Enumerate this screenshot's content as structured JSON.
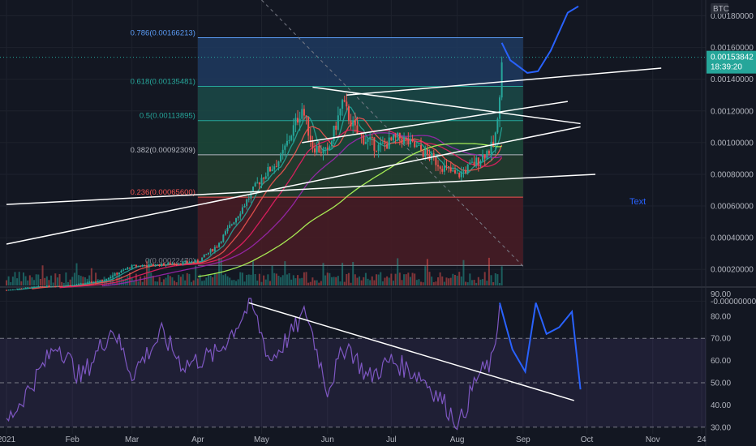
{
  "chart_data": {
    "type": "candlestick",
    "symbol_badge": "BTC",
    "last_price": "0.00153842",
    "countdown": "18:39:20",
    "annotation_text": "Text",
    "price_axis": {
      "ylim": [
        0.00015,
        0.0019
      ],
      "ticks": [
        "0.00180000",
        "0.00160000",
        "0.00140000",
        "0.00120000",
        "0.00100000",
        "0.00080000",
        "0.00060000",
        "0.00040000",
        "0.00020000",
        "-0.00000000"
      ],
      "tick_values": [
        0.0018,
        0.0016,
        0.0014,
        0.0012,
        0.001,
        0.0008,
        0.0006,
        0.0004,
        0.0002,
        0.0
      ]
    },
    "rsi_axis": {
      "ylim": [
        27,
        92
      ],
      "ticks": [
        "90.00",
        "80.00",
        "70.00",
        "60.00",
        "50.00",
        "40.00",
        "30.00"
      ],
      "tick_values": [
        90,
        80,
        70,
        60,
        50,
        40,
        30
      ],
      "band_upper": 70,
      "band_mid": 50,
      "band_lower": 30
    },
    "time_axis": {
      "labels": [
        "2021",
        "Feb",
        "Mar",
        "Apr",
        "May",
        "Jun",
        "Jul",
        "Aug",
        "Sep",
        "Oct",
        "Nov",
        "24"
      ],
      "dates": [
        "2021-01-01",
        "2021-02-01",
        "2021-03-01",
        "2021-04-01",
        "2021-05-01",
        "2021-06-01",
        "2021-07-01",
        "2021-08-01",
        "2021-09-01",
        "2021-10-01",
        "2021-11-01",
        "2021-11-24"
      ]
    },
    "fib_levels": [
      {
        "label": "0.786(0.00166213)",
        "value": 0.00166213,
        "color": "#5b9cf6"
      },
      {
        "label": "0.618(0.00135481)",
        "value": 0.00135481,
        "color": "#26a69a"
      },
      {
        "label": "0.5(0.00113895)",
        "value": 0.00113895,
        "color": "#26a69a"
      },
      {
        "label": "0.382(0.00092309)",
        "value": 0.00092309,
        "color": "#b2b5be"
      },
      {
        "label": "0.236(0.00065600)",
        "value": 0.000656,
        "color": "#ef5350"
      },
      {
        "label": "0(0.00022470)",
        "value": 0.0002247,
        "color": "#787b86"
      }
    ],
    "fib_range_dates": [
      "2021-04-01",
      "2021-09-01"
    ],
    "price_series": [
      [
        "2021-01-01",
        7e-05
      ],
      [
        "2021-01-15",
        9e-05
      ],
      [
        "2021-02-01",
        0.0001
      ],
      [
        "2021-02-15",
        0.00013
      ],
      [
        "2021-03-01",
        0.00022
      ],
      [
        "2021-03-15",
        0.00023
      ],
      [
        "2021-04-01",
        0.00025
      ],
      [
        "2021-04-10",
        0.00035
      ],
      [
        "2021-04-20",
        0.00055
      ],
      [
        "2021-05-01",
        0.00078
      ],
      [
        "2021-05-10",
        0.0009
      ],
      [
        "2021-05-20",
        0.00122
      ],
      [
        "2021-05-25",
        0.00098
      ],
      [
        "2021-06-01",
        0.00093
      ],
      [
        "2021-06-08",
        0.00125
      ],
      [
        "2021-06-15",
        0.00105
      ],
      [
        "2021-06-25",
        0.00097
      ],
      [
        "2021-07-05",
        0.00103
      ],
      [
        "2021-07-15",
        0.00095
      ],
      [
        "2021-07-25",
        0.00085
      ],
      [
        "2021-08-01",
        0.00079
      ],
      [
        "2021-08-10",
        0.00088
      ],
      [
        "2021-08-18",
        0.00098
      ],
      [
        "2021-08-20",
        0.00112
      ],
      [
        "2021-08-22",
        0.00155
      ]
    ],
    "projection_series": [
      [
        "2021-08-22",
        0.00163
      ],
      [
        "2021-08-26",
        0.00152
      ],
      [
        "2021-09-03",
        0.00144
      ],
      [
        "2021-09-08",
        0.00145
      ],
      [
        "2021-09-14",
        0.00158
      ],
      [
        "2021-09-22",
        0.00182
      ],
      [
        "2021-09-27",
        0.00186
      ]
    ],
    "rsi_series": [
      [
        "2021-01-01",
        32
      ],
      [
        "2021-01-10",
        45
      ],
      [
        "2021-01-25",
        68
      ],
      [
        "2021-02-05",
        52
      ],
      [
        "2021-02-20",
        75
      ],
      [
        "2021-03-01",
        54
      ],
      [
        "2021-03-15",
        72
      ],
      [
        "2021-03-25",
        58
      ],
      [
        "2021-04-10",
        63
      ],
      [
        "2021-04-20",
        77
      ],
      [
        "2021-04-26",
        86
      ],
      [
        "2021-05-05",
        60
      ],
      [
        "2021-05-15",
        72
      ],
      [
        "2021-05-22",
        82
      ],
      [
        "2021-06-01",
        47
      ],
      [
        "2021-06-10",
        68
      ],
      [
        "2021-06-20",
        52
      ],
      [
        "2021-07-01",
        60
      ],
      [
        "2021-07-15",
        53
      ],
      [
        "2021-07-25",
        42
      ],
      [
        "2021-08-02",
        31
      ],
      [
        "2021-08-10",
        52
      ],
      [
        "2021-08-18",
        60
      ],
      [
        "2021-08-21",
        86
      ]
    ],
    "rsi_projection": [
      [
        "2021-08-21",
        86
      ],
      [
        "2021-08-27",
        65
      ],
      [
        "2021-09-02",
        55
      ],
      [
        "2021-09-07",
        86
      ],
      [
        "2021-09-12",
        72
      ],
      [
        "2021-09-18",
        75
      ],
      [
        "2021-09-24",
        82
      ],
      [
        "2021-09-28",
        47
      ]
    ],
    "ma_colors": [
      "#26a69a",
      "#ef5350",
      "#e91e63",
      "#9c27b0",
      "#b2ff59"
    ],
    "trendlines_price": [
      {
        "from": [
          "2021-01-01",
          0.00061
        ],
        "to": [
          "2021-10-05",
          0.0008
        ]
      },
      {
        "from": [
          "2021-01-01",
          0.00036
        ],
        "to": [
          "2021-09-28",
          0.0011
        ]
      },
      {
        "from": [
          "2021-05-20",
          0.001
        ],
        "to": [
          "2021-09-22",
          0.00126
        ]
      },
      {
        "from": [
          "2021-05-25",
          0.00135
        ],
        "to": [
          "2021-09-28",
          0.00112
        ]
      },
      {
        "from": [
          "2021-06-10",
          0.0013
        ],
        "to": [
          "2021-11-05",
          0.00147
        ]
      }
    ],
    "trendline_rsi": {
      "from": [
        "2021-04-25",
        86
      ],
      "to": [
        "2021-09-25",
        42
      ]
    },
    "colors": {
      "background": "#131722",
      "up": "#26a69a",
      "down": "#ef5350",
      "rsi": "#7e57c2",
      "projection": "#2962ff",
      "last_price_bg": "#26a69a"
    }
  }
}
